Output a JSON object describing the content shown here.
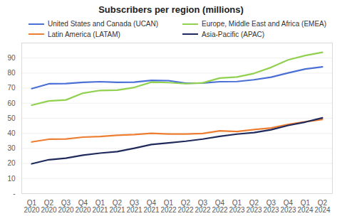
{
  "chart_data": {
    "type": "line",
    "title": "Subscribers per region (millions)",
    "categories": [
      "Q1 2020",
      "Q2 2020",
      "Q3 2020",
      "Q4 2020",
      "Q1 2021",
      "Q2 2021",
      "Q3 2021",
      "Q4 2021",
      "Q1 2022",
      "Q2 2022",
      "Q3 2022",
      "Q4 2022",
      "Q1 2023",
      "Q2 2023",
      "Q3 2023",
      "Q4 2023",
      "Q1 2024",
      "Q2 2024"
    ],
    "series": [
      {
        "name": "United States and Canada (UCAN)",
        "color": "#4a6fd6",
        "values": [
          69.7,
          72.9,
          73.1,
          73.9,
          74.3,
          73.9,
          74.0,
          75.2,
          75.0,
          73.3,
          73.4,
          74.3,
          74.4,
          75.6,
          77.3,
          80.1,
          82.7,
          84.1
        ]
      },
      {
        "name": "Europe, Middle East and Africa (EMEA)",
        "color": "#92d050",
        "values": [
          58.7,
          61.5,
          62.2,
          66.7,
          68.5,
          68.7,
          70.5,
          74.0,
          73.7,
          73.0,
          73.5,
          76.7,
          77.4,
          79.8,
          83.8,
          88.8,
          91.7,
          93.8
        ]
      },
      {
        "name": "Latin America (LATAM)",
        "color": "#ed7d31",
        "values": [
          34.3,
          36.1,
          36.3,
          37.5,
          37.9,
          38.7,
          39.2,
          40.0,
          39.6,
          39.6,
          39.9,
          41.7,
          41.2,
          42.5,
          43.6,
          46.0,
          47.7,
          49.2
        ]
      },
      {
        "name": "Asia-Pacific (APAC)",
        "color": "#1f2a5c",
        "values": [
          19.8,
          22.5,
          23.5,
          25.5,
          26.9,
          27.9,
          30.1,
          32.6,
          33.7,
          34.8,
          36.2,
          38.0,
          39.5,
          40.5,
          42.4,
          45.3,
          47.5,
          50.3
        ]
      }
    ],
    "ylim": [
      0,
      100
    ],
    "yticks": [
      {
        "value": 0,
        "label": "-"
      },
      10,
      20,
      30,
      40,
      50,
      60,
      70,
      80,
      90
    ],
    "grid": true,
    "legend": "top"
  }
}
